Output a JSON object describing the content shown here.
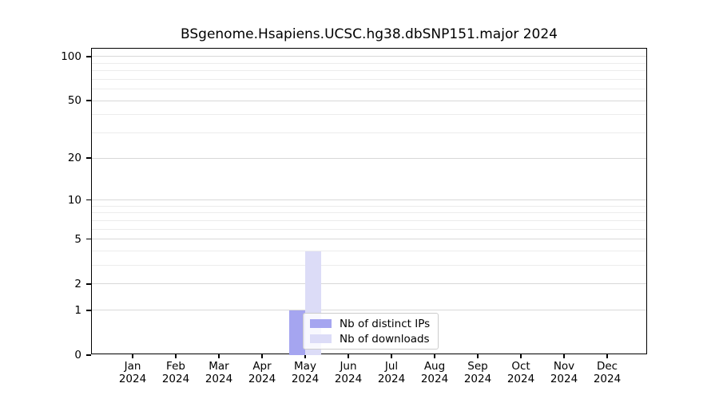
{
  "chart_data": {
    "type": "bar",
    "title": "BSgenome.Hsapiens.UCSC.hg38.dbSNP151.major 2024",
    "xlabel": "",
    "ylabel": "",
    "categories": [
      "Jan",
      "Feb",
      "Mar",
      "Apr",
      "May",
      "Jun",
      "Jul",
      "Aug",
      "Sep",
      "Oct",
      "Nov",
      "Dec"
    ],
    "category_year": "2024",
    "series": [
      {
        "name": "Nb of distinct IPs",
        "color": "#a5a5f0",
        "values": [
          0,
          0,
          0,
          0,
          1,
          0,
          0,
          0,
          0,
          0,
          0,
          0
        ]
      },
      {
        "name": "Nb of downloads",
        "color": "#dcdcf7",
        "values": [
          0,
          0,
          0,
          0,
          4,
          0,
          0,
          0,
          0,
          0,
          0,
          0
        ]
      }
    ],
    "yscale": "log1p",
    "ylim": [
      0,
      113
    ],
    "yticks": [
      0,
      1,
      2,
      5,
      10,
      20,
      50,
      100
    ],
    "minor_gridlines": [
      3,
      4,
      6,
      7,
      8,
      9,
      30,
      40,
      60,
      70,
      80,
      90
    ],
    "grid": true,
    "legend": {
      "position": "inside-bottom-center",
      "items": [
        "Nb of distinct IPs",
        "Nb of downloads"
      ]
    },
    "axis_color": "#000000",
    "major_grid_color": "#d8d8d8",
    "minor_grid_color": "#ececec"
  }
}
